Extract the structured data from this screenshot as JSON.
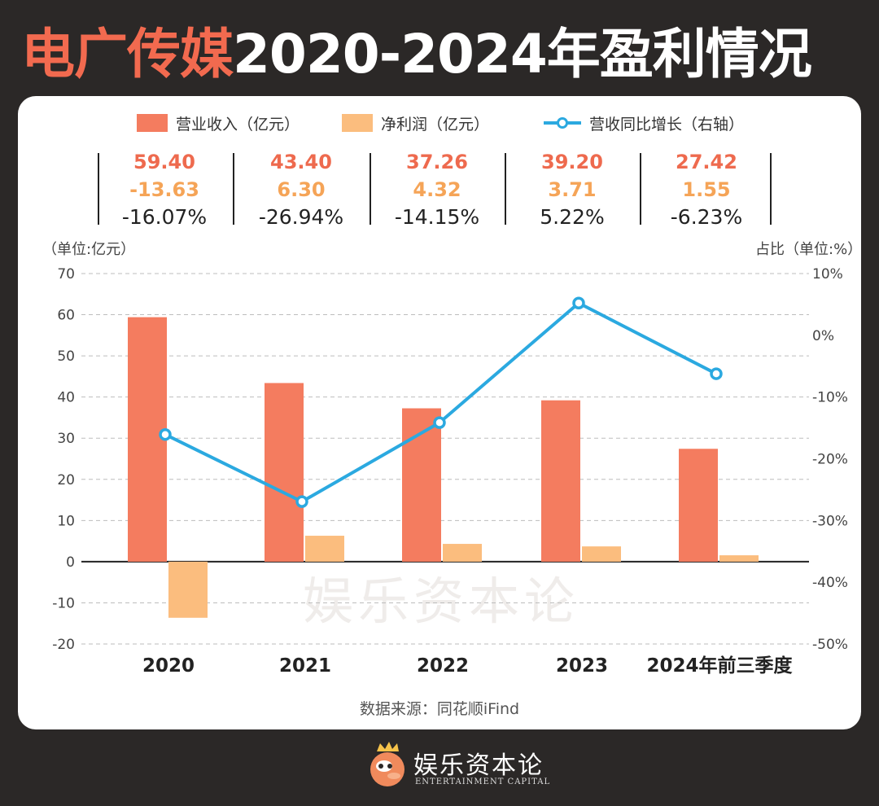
{
  "title_highlight": "电广传媒",
  "title_rest": "2020-2024年盈利情况",
  "legend": {
    "revenue": "营业收入（亿元）",
    "net_profit": "净利润（亿元）",
    "yoy": "营收同比增长（右轴）"
  },
  "stats": [
    {
      "revenue": "59.40",
      "net_profit": "-13.63",
      "yoy": "-16.07%"
    },
    {
      "revenue": "43.40",
      "net_profit": "6.30",
      "yoy": "-26.94%"
    },
    {
      "revenue": "37.26",
      "net_profit": "4.32",
      "yoy": "-14.15%"
    },
    {
      "revenue": "39.20",
      "net_profit": "3.71",
      "yoy": "5.22%"
    },
    {
      "revenue": "27.42",
      "net_profit": "1.55",
      "yoy": "-6.23%"
    }
  ],
  "unit_left": "（单位:亿元）",
  "unit_right": "占比（单位:%）",
  "source": "数据来源：同花顺iFind",
  "watermark": "娱乐资本论",
  "footer": {
    "name": "娱乐资本论",
    "sub": "ENTERTAINMENT CAPITAL"
  },
  "colors": {
    "revenue": "#f47c5f",
    "net_profit": "#fbbd7e",
    "yoy": "#2ba9e0",
    "title_highlight": "#f26a4f"
  },
  "chart_data": {
    "type": "bar",
    "categories": [
      "2020",
      "2021",
      "2022",
      "2023",
      "2024年前三季度"
    ],
    "series": [
      {
        "name": "营业收入（亿元）",
        "type": "bar",
        "axis": "left",
        "values": [
          59.4,
          43.4,
          37.26,
          39.2,
          27.42
        ]
      },
      {
        "name": "净利润（亿元）",
        "type": "bar",
        "axis": "left",
        "values": [
          -13.63,
          6.3,
          4.32,
          3.71,
          1.55
        ]
      },
      {
        "name": "营收同比增长（右轴）",
        "type": "line",
        "axis": "right",
        "values": [
          -16.07,
          -26.94,
          -14.15,
          5.22,
          -6.23
        ]
      }
    ],
    "ylim_left": [
      -20,
      70
    ],
    "yticks_left": [
      "-20",
      "-10",
      "0",
      "10",
      "20",
      "30",
      "40",
      "50",
      "60",
      "70"
    ],
    "ylim_right": [
      -50,
      10
    ],
    "yticks_right": [
      "-50%",
      "-40%",
      "-30%",
      "-20%",
      "-10%",
      "0%",
      "10%"
    ],
    "grid": true,
    "legend_position": "top"
  }
}
